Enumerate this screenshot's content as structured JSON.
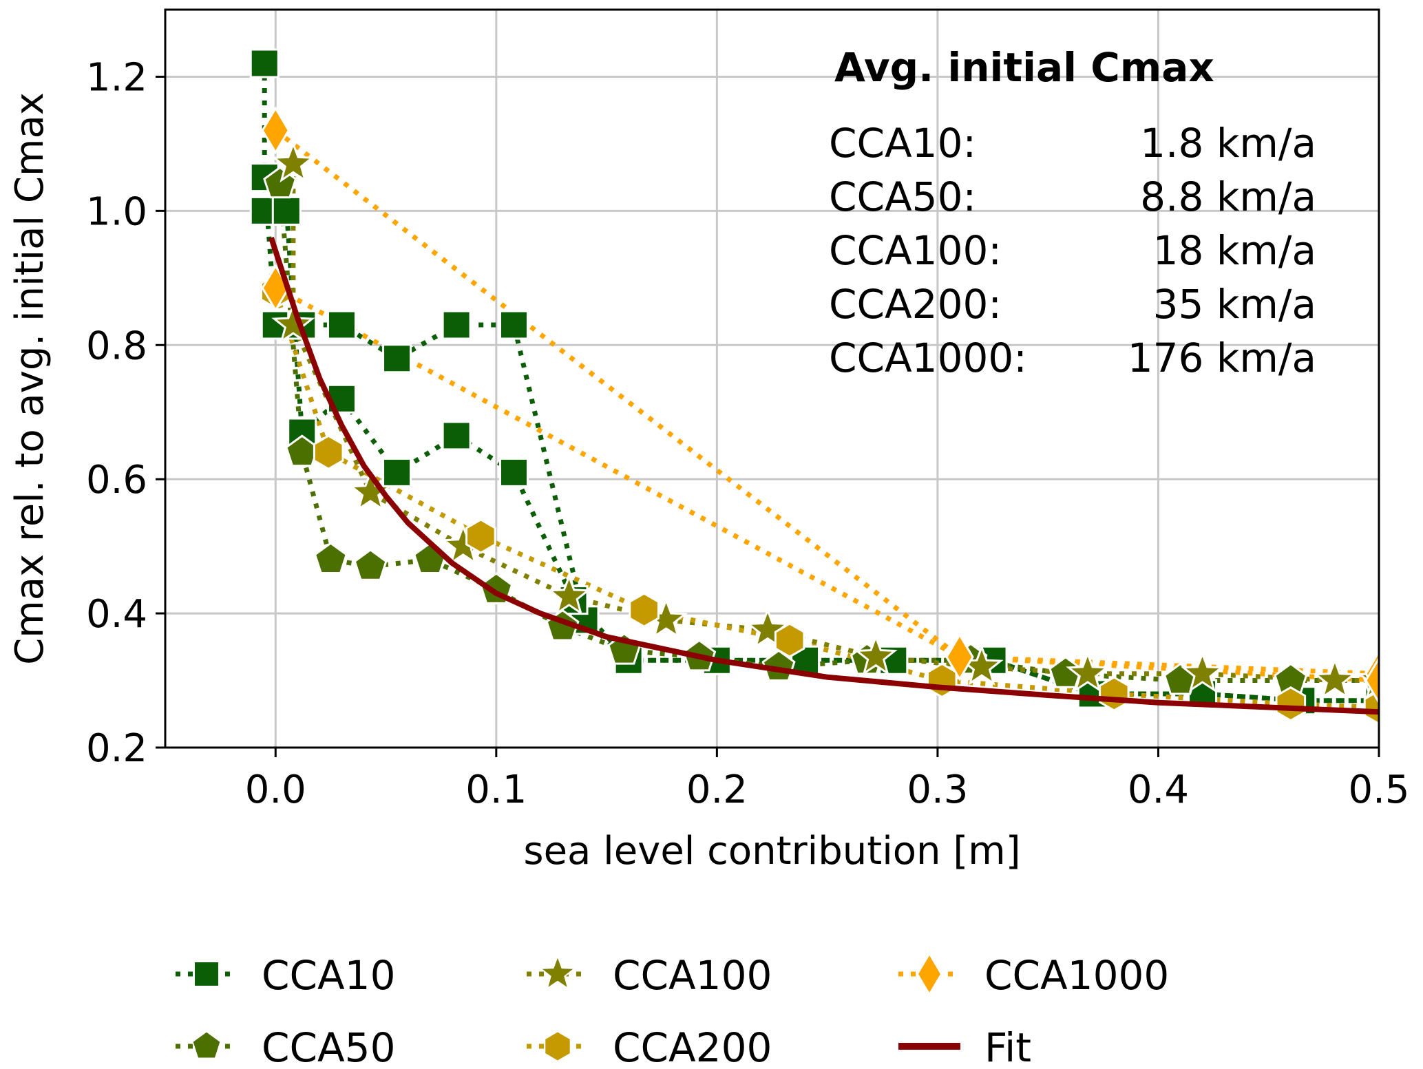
{
  "chart_data": {
    "type": "line",
    "title": "",
    "xlabel": "sea level contribution [m]",
    "ylabel": "Cmax rel. to avg. initial Cmax",
    "xlim": [
      -0.05,
      0.5
    ],
    "ylim": [
      0.2,
      1.3
    ],
    "xticks": [
      "0.0",
      "0.1",
      "0.2",
      "0.3",
      "0.4",
      "0.5"
    ],
    "xtick_values": [
      0.0,
      0.1,
      0.2,
      0.3,
      0.4,
      0.5
    ],
    "yticks": [
      "0.2",
      "0.4",
      "0.6",
      "0.8",
      "1.0",
      "1.2"
    ],
    "ytick_values": [
      0.2,
      0.4,
      0.6,
      0.8,
      1.0,
      1.2
    ],
    "grid": true,
    "legend_position": "bottom",
    "annotation": {
      "title": "Avg. initial Cmax",
      "rows": [
        {
          "label": "CCA10:",
          "value": "1.8 km/a"
        },
        {
          "label": "CCA50:",
          "value": "8.8 km/a"
        },
        {
          "label": "CCA100:",
          "value": "18 km/a"
        },
        {
          "label": "CCA200:",
          "value": "35 km/a"
        },
        {
          "label": "CCA1000:",
          "value": "176 km/a"
        }
      ]
    },
    "series": [
      {
        "name": "CCA10",
        "marker": "square",
        "color": "#0b5e06",
        "lines": [
          [
            [
              -0.005,
              1.22
            ],
            [
              -0.005,
              1.05
            ],
            [
              0.0,
              0.83
            ],
            [
              0.012,
              0.83
            ],
            [
              0.03,
              0.83
            ],
            [
              0.055,
              0.78
            ],
            [
              0.082,
              0.83
            ],
            [
              0.108,
              0.83
            ],
            [
              0.14,
              0.39
            ],
            [
              0.16,
              0.33
            ],
            [
              0.2,
              0.33
            ],
            [
              0.24,
              0.33
            ],
            [
              0.28,
              0.33
            ],
            [
              0.325,
              0.33
            ],
            [
              0.37,
              0.28
            ],
            [
              0.42,
              0.28
            ],
            [
              0.465,
              0.27
            ],
            [
              0.5,
              0.27
            ]
          ],
          [
            [
              -0.005,
              1.0
            ],
            [
              0.005,
              1.0
            ],
            [
              0.012,
              0.67
            ],
            [
              0.03,
              0.72
            ],
            [
              0.055,
              0.61
            ],
            [
              0.082,
              0.665
            ],
            [
              0.108,
              0.61
            ],
            [
              0.135,
              0.42
            ],
            [
              0.16,
              0.33
            ],
            [
              0.2,
              0.33
            ],
            [
              0.24,
              0.33
            ],
            [
              0.28,
              0.33
            ],
            [
              0.325,
              0.33
            ],
            [
              0.37,
              0.28
            ],
            [
              0.42,
              0.28
            ],
            [
              0.465,
              0.27
            ],
            [
              0.5,
              0.27
            ]
          ]
        ]
      },
      {
        "name": "CCA50",
        "marker": "pentagon",
        "color": "#4b7000",
        "lines": [
          [
            [
              0.002,
              1.04
            ],
            [
              0.012,
              0.64
            ],
            [
              0.025,
              0.48
            ],
            [
              0.043,
              0.47
            ],
            [
              0.07,
              0.48
            ],
            [
              0.1,
              0.435
            ],
            [
              0.13,
              0.38
            ],
            [
              0.158,
              0.345
            ],
            [
              0.192,
              0.335
            ],
            [
              0.228,
              0.32
            ],
            [
              0.268,
              0.33
            ],
            [
              0.315,
              0.33
            ],
            [
              0.358,
              0.31
            ],
            [
              0.41,
              0.3
            ],
            [
              0.46,
              0.3
            ],
            [
              0.5,
              0.3
            ]
          ]
        ]
      },
      {
        "name": "CCA100",
        "marker": "star",
        "color": "#808000",
        "lines": [
          [
            [
              0.008,
              1.07
            ],
            [
              0.008,
              0.83
            ],
            [
              0.043,
              0.58
            ],
            [
              0.085,
              0.5
            ],
            [
              0.133,
              0.425
            ],
            [
              0.177,
              0.39
            ],
            [
              0.223,
              0.375
            ],
            [
              0.272,
              0.335
            ],
            [
              0.32,
              0.32
            ],
            [
              0.368,
              0.31
            ],
            [
              0.42,
              0.31
            ],
            [
              0.48,
              0.3
            ],
            [
              0.5,
              0.3
            ]
          ]
        ]
      },
      {
        "name": "CCA200",
        "marker": "hexagon",
        "color": "#c49a00",
        "lines": [
          [
            [
              0.0,
              0.88
            ],
            [
              0.024,
              0.64
            ],
            [
              0.093,
              0.515
            ],
            [
              0.167,
              0.405
            ],
            [
              0.233,
              0.36
            ],
            [
              0.302,
              0.3
            ],
            [
              0.38,
              0.28
            ],
            [
              0.46,
              0.265
            ],
            [
              0.5,
              0.26
            ]
          ]
        ]
      },
      {
        "name": "CCA1000",
        "marker": "diamond",
        "color": "#ffa500",
        "lines": [
          [
            [
              0.0,
              1.12
            ],
            [
              0.31,
              0.335
            ],
            [
              0.5,
              0.31
            ]
          ],
          [
            [
              0.0,
              0.885
            ],
            [
              0.31,
              0.335
            ],
            [
              0.5,
              0.3
            ]
          ]
        ]
      },
      {
        "name": "Fit",
        "marker": "none",
        "color": "#8b0000",
        "function": "fit_curve",
        "x_range": [
          -0.002,
          0.5
        ],
        "points": [
          [
            -0.002,
            0.96
          ],
          [
            0.01,
            0.84
          ],
          [
            0.02,
            0.75
          ],
          [
            0.03,
            0.68
          ],
          [
            0.04,
            0.62
          ],
          [
            0.05,
            0.575
          ],
          [
            0.06,
            0.535
          ],
          [
            0.08,
            0.475
          ],
          [
            0.1,
            0.43
          ],
          [
            0.12,
            0.4
          ],
          [
            0.15,
            0.365
          ],
          [
            0.2,
            0.33
          ],
          [
            0.25,
            0.305
          ],
          [
            0.3,
            0.29
          ],
          [
            0.35,
            0.278
          ],
          [
            0.4,
            0.267
          ],
          [
            0.45,
            0.26
          ],
          [
            0.5,
            0.253
          ]
        ]
      }
    ],
    "legend": [
      {
        "name": "CCA10",
        "marker": "square",
        "color": "#0b5e06"
      },
      {
        "name": "CCA50",
        "marker": "pentagon",
        "color": "#4b7000"
      },
      {
        "name": "CCA100",
        "marker": "star",
        "color": "#808000"
      },
      {
        "name": "CCA200",
        "marker": "hexagon",
        "color": "#c49a00"
      },
      {
        "name": "CCA1000",
        "marker": "diamond",
        "color": "#ffa500"
      },
      {
        "name": "Fit",
        "marker": "line",
        "color": "#8b0000"
      }
    ]
  }
}
